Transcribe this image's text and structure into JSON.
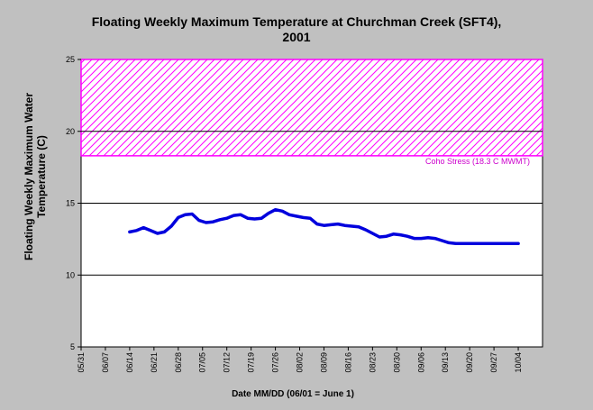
{
  "chart_data": {
    "type": "line",
    "title_line1": "Floating Weekly Maximum Temperature at Churchman Creek (SFT4),",
    "title_line2": "2001",
    "ylabel_line1": "Floating Weekly Maximum Water",
    "ylabel_line2": "Temperature (C)",
    "xlabel": "Date MM/DD (06/01 = June 1)",
    "ylim": [
      5,
      25
    ],
    "yticks": [
      5,
      10,
      15,
      20,
      25
    ],
    "xticks": [
      "05/31",
      "06/07",
      "06/14",
      "06/21",
      "06/28",
      "07/05",
      "07/12",
      "07/19",
      "07/26",
      "08/02",
      "08/09",
      "08/16",
      "08/23",
      "08/30",
      "09/06",
      "09/13",
      "09/20",
      "09/27",
      "10/04"
    ],
    "gridlines": [
      10,
      15,
      20
    ],
    "stress_band": {
      "label": "Coho Stress (18.3 C MWMT)",
      "lower": 18.3,
      "upper": 25,
      "color": "#ff00ff"
    },
    "series": [
      {
        "color": "#0000dd",
        "x": [
          14,
          16,
          18,
          20,
          22,
          24,
          26,
          28,
          30,
          32,
          34,
          36,
          38,
          40,
          42,
          44,
          46,
          48,
          50,
          52,
          54,
          56,
          58,
          60,
          62,
          64,
          66,
          68,
          70,
          72,
          74,
          76,
          78,
          80,
          82,
          84,
          86,
          88,
          90,
          92,
          94,
          96,
          98,
          100,
          102,
          104,
          106,
          108,
          110,
          112,
          114,
          116,
          118,
          120,
          122,
          124,
          126
        ],
        "values": [
          13.0,
          13.1,
          13.3,
          13.1,
          12.9,
          13.0,
          13.4,
          14.0,
          14.2,
          14.25,
          13.8,
          13.65,
          13.7,
          13.85,
          13.95,
          14.15,
          14.2,
          13.95,
          13.9,
          13.95,
          14.3,
          14.55,
          14.45,
          14.2,
          14.1,
          14.0,
          13.95,
          13.55,
          13.45,
          13.5,
          13.55,
          13.45,
          13.4,
          13.35,
          13.15,
          12.9,
          12.65,
          12.7,
          12.85,
          12.8,
          12.7,
          12.55,
          12.55,
          12.6,
          12.55,
          12.4,
          12.25,
          12.2,
          12.2,
          12.2,
          12.2,
          12.2,
          12.2,
          12.2,
          12.2,
          12.2,
          12.2
        ]
      }
    ]
  }
}
